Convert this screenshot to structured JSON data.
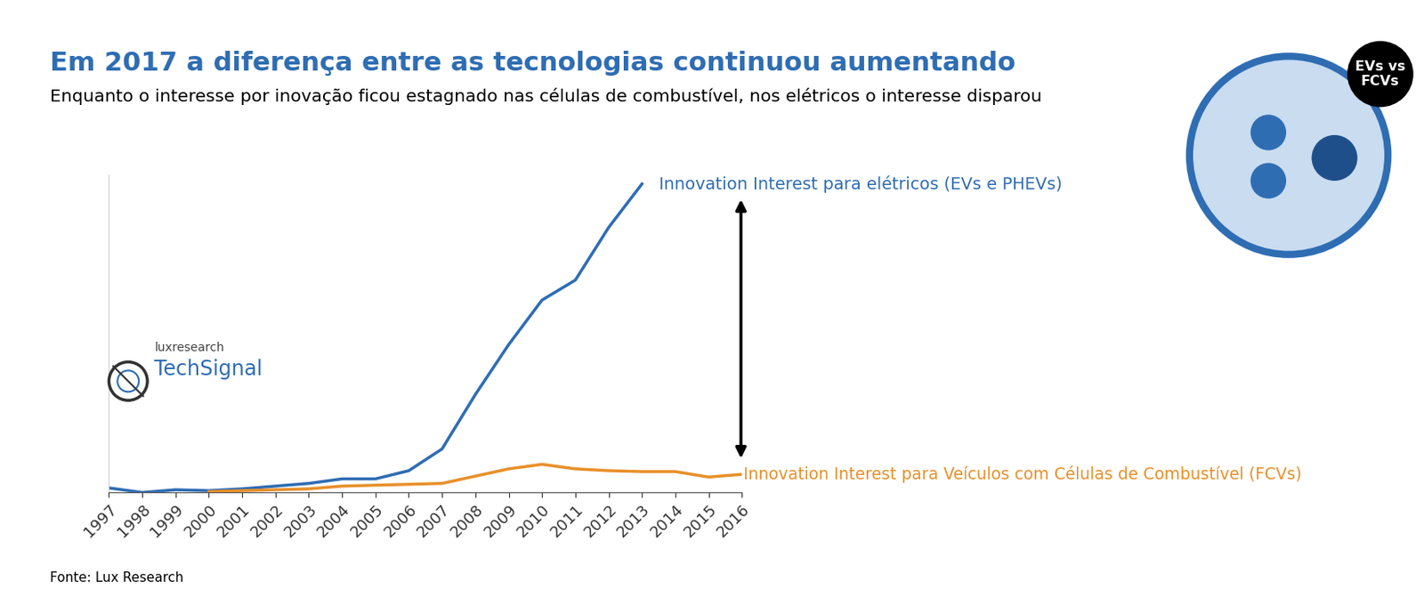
{
  "chart_data": {
    "type": "line",
    "title": "Em 2017 a diferença entre as tecnologias continuou aumentando",
    "subtitle": "Enquanto o interesse por inovação ficou estagnado nas células de combustível, nos elétricos o interesse disparou",
    "categories": [
      "1997",
      "1998",
      "1999",
      "2000",
      "2001",
      "2002",
      "2003",
      "2004",
      "2005",
      "2006",
      "2007",
      "2008",
      "2009",
      "2010",
      "2011",
      "2012",
      "2013",
      "2014",
      "2015",
      "2016"
    ],
    "series": [
      {
        "name": "Innovation Interest para elétricos (EVs e PHEVs)",
        "color": "#2f6db3",
        "values": [
          5,
          0,
          3,
          2,
          4,
          7,
          10,
          15,
          15,
          24,
          48,
          108,
          163,
          212,
          234,
          292,
          340,
          null,
          null,
          null
        ]
      },
      {
        "name": "Innovation Interest para Veículos com Células de Combustível (FCVs)",
        "color": "#e8902a",
        "values": [
          null,
          null,
          null,
          1,
          2,
          3,
          4,
          7,
          8,
          9,
          10,
          18,
          26,
          31,
          26,
          24,
          23,
          23,
          17,
          20
        ]
      }
    ],
    "ylim": [
      0,
      350
    ],
    "tick_labels": "x",
    "grid": false,
    "source": "Fonte: Lux Research",
    "logo": {
      "brand": "luxresearch",
      "product": "TechSignal"
    },
    "badge": [
      "EVs vs",
      "FCVs"
    ]
  }
}
